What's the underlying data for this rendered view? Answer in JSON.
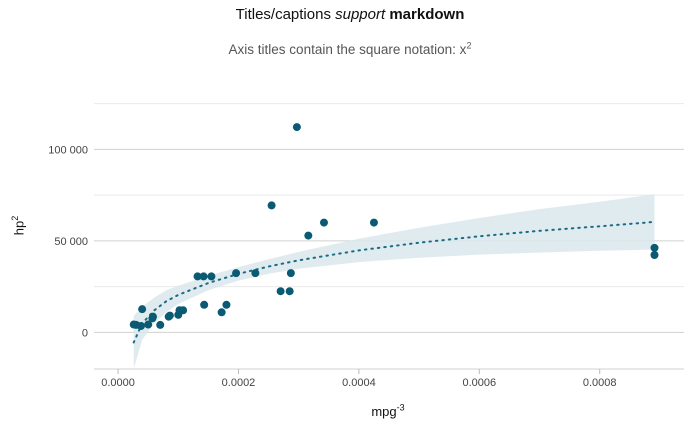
{
  "title": {
    "part1": "Titles/captions",
    "part2": "support",
    "part3": "markdown"
  },
  "subtitle": {
    "text": "Axis titles contain the square notation: x",
    "sup": "2"
  },
  "colors": {
    "points": "#0b5a73",
    "band": "#dbe7ec",
    "fit": "#1a6b84",
    "grid": "#d0d0d0",
    "gridMinor": "#e9e9e9"
  },
  "chart_data": {
    "type": "scatter",
    "xlabel": {
      "base": "mpg",
      "sup": "-3"
    },
    "ylabel": {
      "base": "hp",
      "sup": "2"
    },
    "xlim": [
      -4e-05,
      0.00094
    ],
    "ylim": [
      -20000,
      127000
    ],
    "x_ticks": [
      0.0,
      0.0002,
      0.0004,
      0.0006,
      0.0008
    ],
    "x_tick_labels": [
      "0.0000",
      "0.0002",
      "0.0004",
      "0.0006",
      "0.0008"
    ],
    "y_ticks": [
      0,
      50000,
      100000
    ],
    "y_tick_labels": [
      "0",
      "50 000",
      "100 000"
    ],
    "y_minor_ticks": [
      25000,
      75000,
      125000
    ],
    "points": [
      {
        "x": 2.6e-05,
        "y": 4300
      },
      {
        "x": 3e-05,
        "y": 4100
      },
      {
        "x": 3.8e-05,
        "y": 3500
      },
      {
        "x": 4e-05,
        "y": 12700
      },
      {
        "x": 5e-05,
        "y": 4300
      },
      {
        "x": 5.7e-05,
        "y": 7700
      },
      {
        "x": 5.8e-05,
        "y": 8600
      },
      {
        "x": 7e-05,
        "y": 4100
      },
      {
        "x": 8.4e-05,
        "y": 8600
      },
      {
        "x": 8.6e-05,
        "y": 9200
      },
      {
        "x": 0.0001,
        "y": 9600
      },
      {
        "x": 0.000102,
        "y": 12100
      },
      {
        "x": 0.000108,
        "y": 12100
      },
      {
        "x": 0.000132,
        "y": 30600
      },
      {
        "x": 0.000142,
        "y": 30600
      },
      {
        "x": 0.000143,
        "y": 15100
      },
      {
        "x": 0.000155,
        "y": 30600
      },
      {
        "x": 0.000172,
        "y": 11000
      },
      {
        "x": 0.00018,
        "y": 15100
      },
      {
        "x": 0.000196,
        "y": 32400
      },
      {
        "x": 0.000228,
        "y": 32400
      },
      {
        "x": 0.000255,
        "y": 69400
      },
      {
        "x": 0.00027,
        "y": 22500
      },
      {
        "x": 0.000285,
        "y": 22500
      },
      {
        "x": 0.000287,
        "y": 32400
      },
      {
        "x": 0.000297,
        "y": 112200
      },
      {
        "x": 0.000316,
        "y": 52900
      },
      {
        "x": 0.000342,
        "y": 60000
      },
      {
        "x": 0.000425,
        "y": 60000
      },
      {
        "x": 0.000891,
        "y": 46200
      },
      {
        "x": 0.000891,
        "y": 42300
      }
    ],
    "fit": {
      "x": [
        2.6e-05,
        4e-05,
        6e-05,
        8e-05,
        0.0001,
        0.00015,
        0.0002,
        0.00025,
        0.0003,
        0.0004,
        0.0005,
        0.0006,
        0.0007,
        0.0008,
        0.000891
      ],
      "y": [
        -5500,
        5000,
        12000,
        17000,
        20500,
        27000,
        32000,
        36000,
        39400,
        44800,
        49000,
        52500,
        55500,
        58000,
        60400
      ],
      "lower": [
        -20000,
        -4000,
        5000,
        11000,
        15500,
        23000,
        28300,
        32000,
        34800,
        38400,
        40800,
        42500,
        43600,
        44600,
        45300
      ],
      "upper": [
        9000,
        14000,
        19000,
        23000,
        25500,
        31000,
        35700,
        40000,
        44000,
        51200,
        57200,
        62500,
        67400,
        71400,
        75500
      ]
    }
  }
}
